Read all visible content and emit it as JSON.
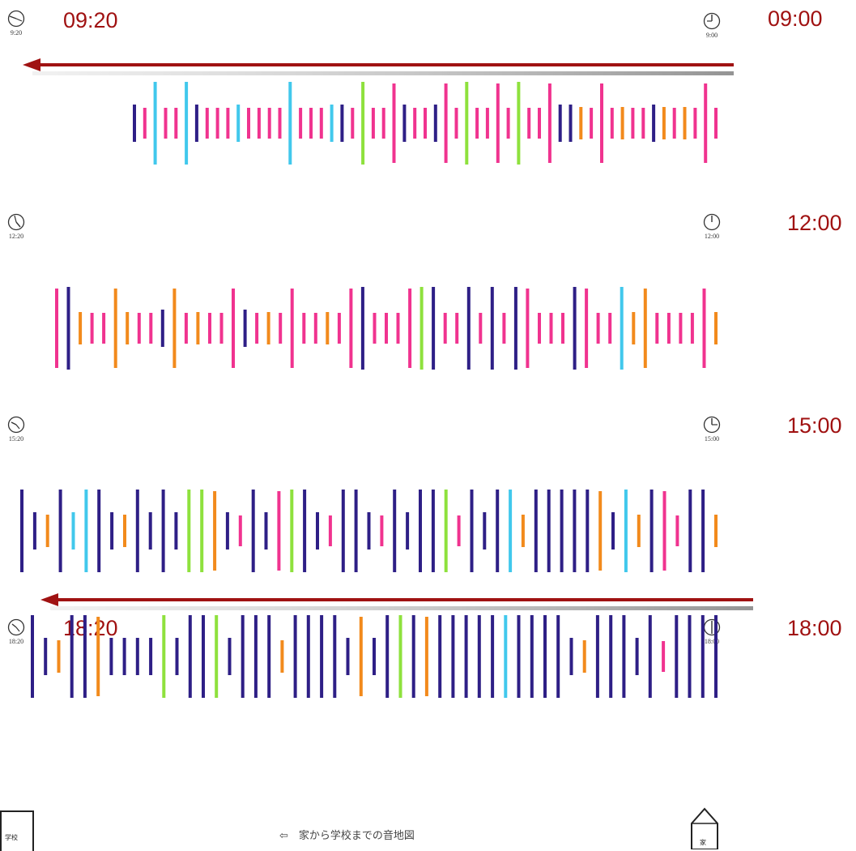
{
  "rows": [
    {
      "left_clock": {
        "icon": "clock-icon",
        "caption": "9:20"
      },
      "right_clock": {
        "icon": "clock-icon",
        "caption": "9:00"
      },
      "left_label": "09:20",
      "right_label": "09:00",
      "marks": "SPCPPCSPPPCPPPPCPPPCSPGPPPSPPSPPGPPPPGPPPSSOPPPOPPSOPOPPP"
    },
    {
      "left_clock": {
        "icon": "clock-icon",
        "caption": "12:20"
      },
      "right_clock": {
        "icon": "clock-icon",
        "caption": "12:00"
      },
      "left_label": "",
      "right_label": "12:00",
      "marks": "PLOPPOOPPSOPOPPPSPOPPPPOPPLPPPPGLPPLPLPLPPPPLPPPCOOPPPPPO"
    },
    {
      "left_clock": {
        "icon": "clock-icon",
        "caption": "15:20"
      },
      "right_clock": {
        "icon": "clock-icon",
        "caption": "15:00"
      },
      "left_label": "",
      "right_label": "15:00",
      "marks": "LSOLCCLSOLSLSGGOSPLSPGLSPLLSPLSLLGPLSLCOLLLLLOSCOLPPLLO"
    },
    {
      "left_clock": {
        "icon": "clock-icon",
        "caption": "18:20"
      },
      "right_clock": {
        "icon": "clock-icon",
        "caption": "18:00"
      },
      "left_label": "18:20",
      "right_label": "18:00",
      "marks": "LSOLLOSSSSGSLLGSLLLOLLLLSOSLGLOLLLLLCLLLLSOLLLSLPLLLL"
    }
  ],
  "colors": {
    "navy": "#2e1f86",
    "cyan": "#41c8ec",
    "pink": "#f0338f",
    "green": "#8ee13d",
    "orange": "#f28a1c",
    "arrow": "#a01212"
  },
  "footer": {
    "caption": "⇦　家から学校までの音地図",
    "left_box_label": "学校",
    "right_box_label": "家"
  }
}
